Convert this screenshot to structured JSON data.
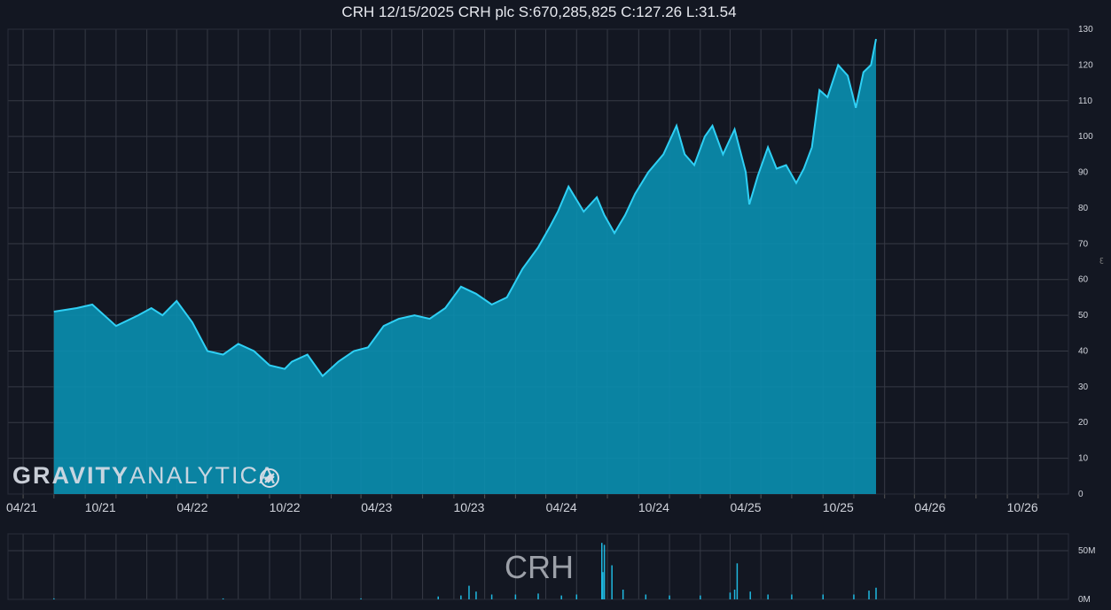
{
  "title": "CRH 12/15/2025 CRH plc S:670,285,825 C:127.26 L:31.54",
  "watermark": {
    "bold": "GRAVITY",
    "light": "ANALYTICA",
    "icon": "rocket-icon"
  },
  "ticker_watermark": "CRH",
  "colors": {
    "background": "#131722",
    "grid": "#363a45",
    "line": "#2fd0f5",
    "area": "#0a8fb0",
    "volume": "#1fb8e0"
  },
  "chart_data": [
    {
      "type": "area",
      "title": "CRH 12/15/2025 CRH plc S:670,285,825 C:127.26 L:31.54",
      "xlabel": "",
      "ylabel": "",
      "x_ticks": [
        "04/21",
        "10/21",
        "04/22",
        "10/22",
        "04/23",
        "10/23",
        "04/24",
        "10/24",
        "04/25",
        "10/25",
        "04/26",
        "10/26"
      ],
      "y_ticks": [
        "0",
        "10",
        "20",
        "30",
        "40",
        "50",
        "60",
        "70",
        "80",
        "90",
        "100",
        "110",
        "120",
        "130"
      ],
      "ylim": [
        0,
        130
      ],
      "xlim": [
        "2021-04-01",
        "2026-12-31"
      ],
      "grid": true,
      "series": [
        {
          "dates": [
            "2021-07-01",
            "2021-08-15",
            "2021-09-15",
            "2021-11-01",
            "2021-12-15",
            "2022-01-10",
            "2022-02-01",
            "2022-03-01",
            "2022-04-01",
            "2022-05-01",
            "2022-06-01",
            "2022-07-01",
            "2022-08-01",
            "2022-09-01",
            "2022-10-01",
            "2022-10-15",
            "2022-11-15",
            "2022-12-15",
            "2023-01-15",
            "2023-02-15",
            "2023-03-15",
            "2023-04-15",
            "2023-05-15",
            "2023-06-15",
            "2023-07-15",
            "2023-08-15",
            "2023-09-15",
            "2023-10-15",
            "2023-11-15",
            "2023-12-15",
            "2024-01-15",
            "2024-02-15",
            "2024-03-10",
            "2024-03-25",
            "2024-04-15",
            "2024-05-15",
            "2024-06-10",
            "2024-06-25",
            "2024-07-15",
            "2024-08-05",
            "2024-08-25",
            "2024-09-20",
            "2024-10-20",
            "2024-11-15",
            "2024-12-01",
            "2024-12-20",
            "2025-01-10",
            "2025-01-25",
            "2025-02-15",
            "2025-03-10",
            "2025-04-01",
            "2025-04-08",
            "2025-04-25",
            "2025-05-15",
            "2025-06-01",
            "2025-06-20",
            "2025-07-10",
            "2025-07-25",
            "2025-08-10",
            "2025-08-25",
            "2025-09-10",
            "2025-10-01",
            "2025-10-20",
            "2025-11-05",
            "2025-11-20",
            "2025-12-05",
            "2025-12-15"
          ],
          "values": [
            51,
            52,
            53,
            47,
            50,
            52,
            50,
            54,
            48,
            40,
            39,
            42,
            40,
            36,
            35,
            37,
            39,
            33,
            37,
            40,
            41,
            47,
            49,
            50,
            49,
            52,
            58,
            56,
            53,
            55,
            63,
            69,
            75,
            79,
            86,
            79,
            83,
            78,
            73,
            78,
            84,
            90,
            95,
            103,
            95,
            92,
            100,
            103,
            95,
            102,
            90,
            81,
            89,
            97,
            91,
            92,
            87,
            91,
            97,
            113,
            111,
            120,
            117,
            108,
            118,
            120,
            127.26
          ]
        }
      ],
      "volume": {
        "label_ticks": [
          "0M",
          "50M"
        ],
        "ylim": [
          0,
          60
        ],
        "dates": [
          "2021-07-01",
          "2022-06-01",
          "2023-03-01",
          "2023-08-01",
          "2023-09-15",
          "2023-10-01",
          "2023-10-15",
          "2023-11-15",
          "2024-01-01",
          "2024-02-15",
          "2024-04-01",
          "2024-05-01",
          "2024-06-20",
          "2024-06-22",
          "2024-06-25",
          "2024-07-10",
          "2024-08-01",
          "2024-09-15",
          "2024-11-01",
          "2025-01-01",
          "2025-03-01",
          "2025-03-10",
          "2025-03-15",
          "2025-04-10",
          "2025-05-15",
          "2025-07-01",
          "2025-09-01",
          "2025-11-01",
          "2025-12-01",
          "2025-12-15"
        ],
        "values": [
          1,
          1,
          1,
          3,
          4,
          14,
          8,
          5,
          5,
          6,
          4,
          5,
          58,
          28,
          56,
          35,
          10,
          5,
          4,
          4,
          7,
          10,
          37,
          8,
          5,
          5,
          5,
          5,
          9,
          12
        ]
      }
    }
  ]
}
